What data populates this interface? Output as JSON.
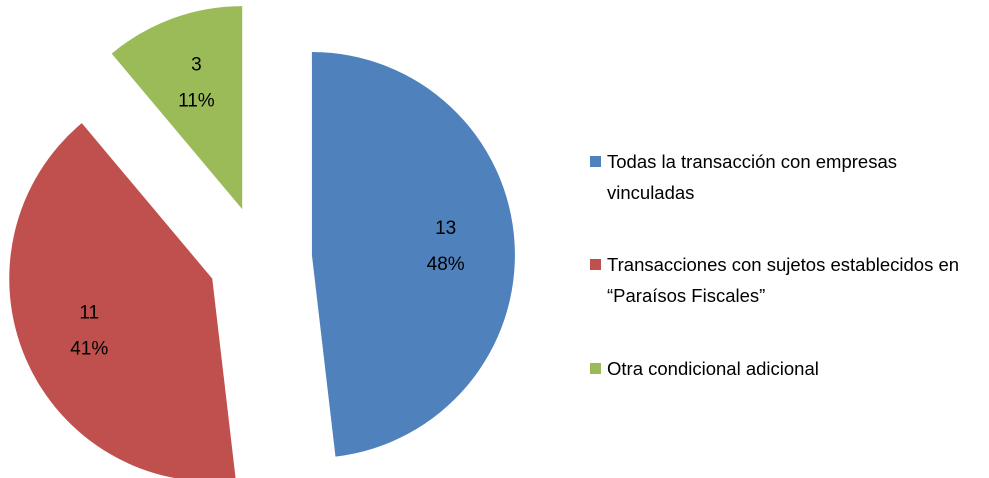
{
  "chart_data": {
    "type": "pie",
    "categories": [
      "Todas la transacción con empresas vinculadas",
      "Transacciones con sujetos establecidos en “Paraísos Fiscales”",
      "Otra condicional adicional"
    ],
    "values": [
      13,
      11,
      3
    ],
    "percent_labels": [
      "48%",
      "41%",
      "11%"
    ],
    "colors": [
      "#4f81bd",
      "#c0504d",
      "#9bbb59"
    ],
    "exploded": true,
    "legend": "right"
  }
}
